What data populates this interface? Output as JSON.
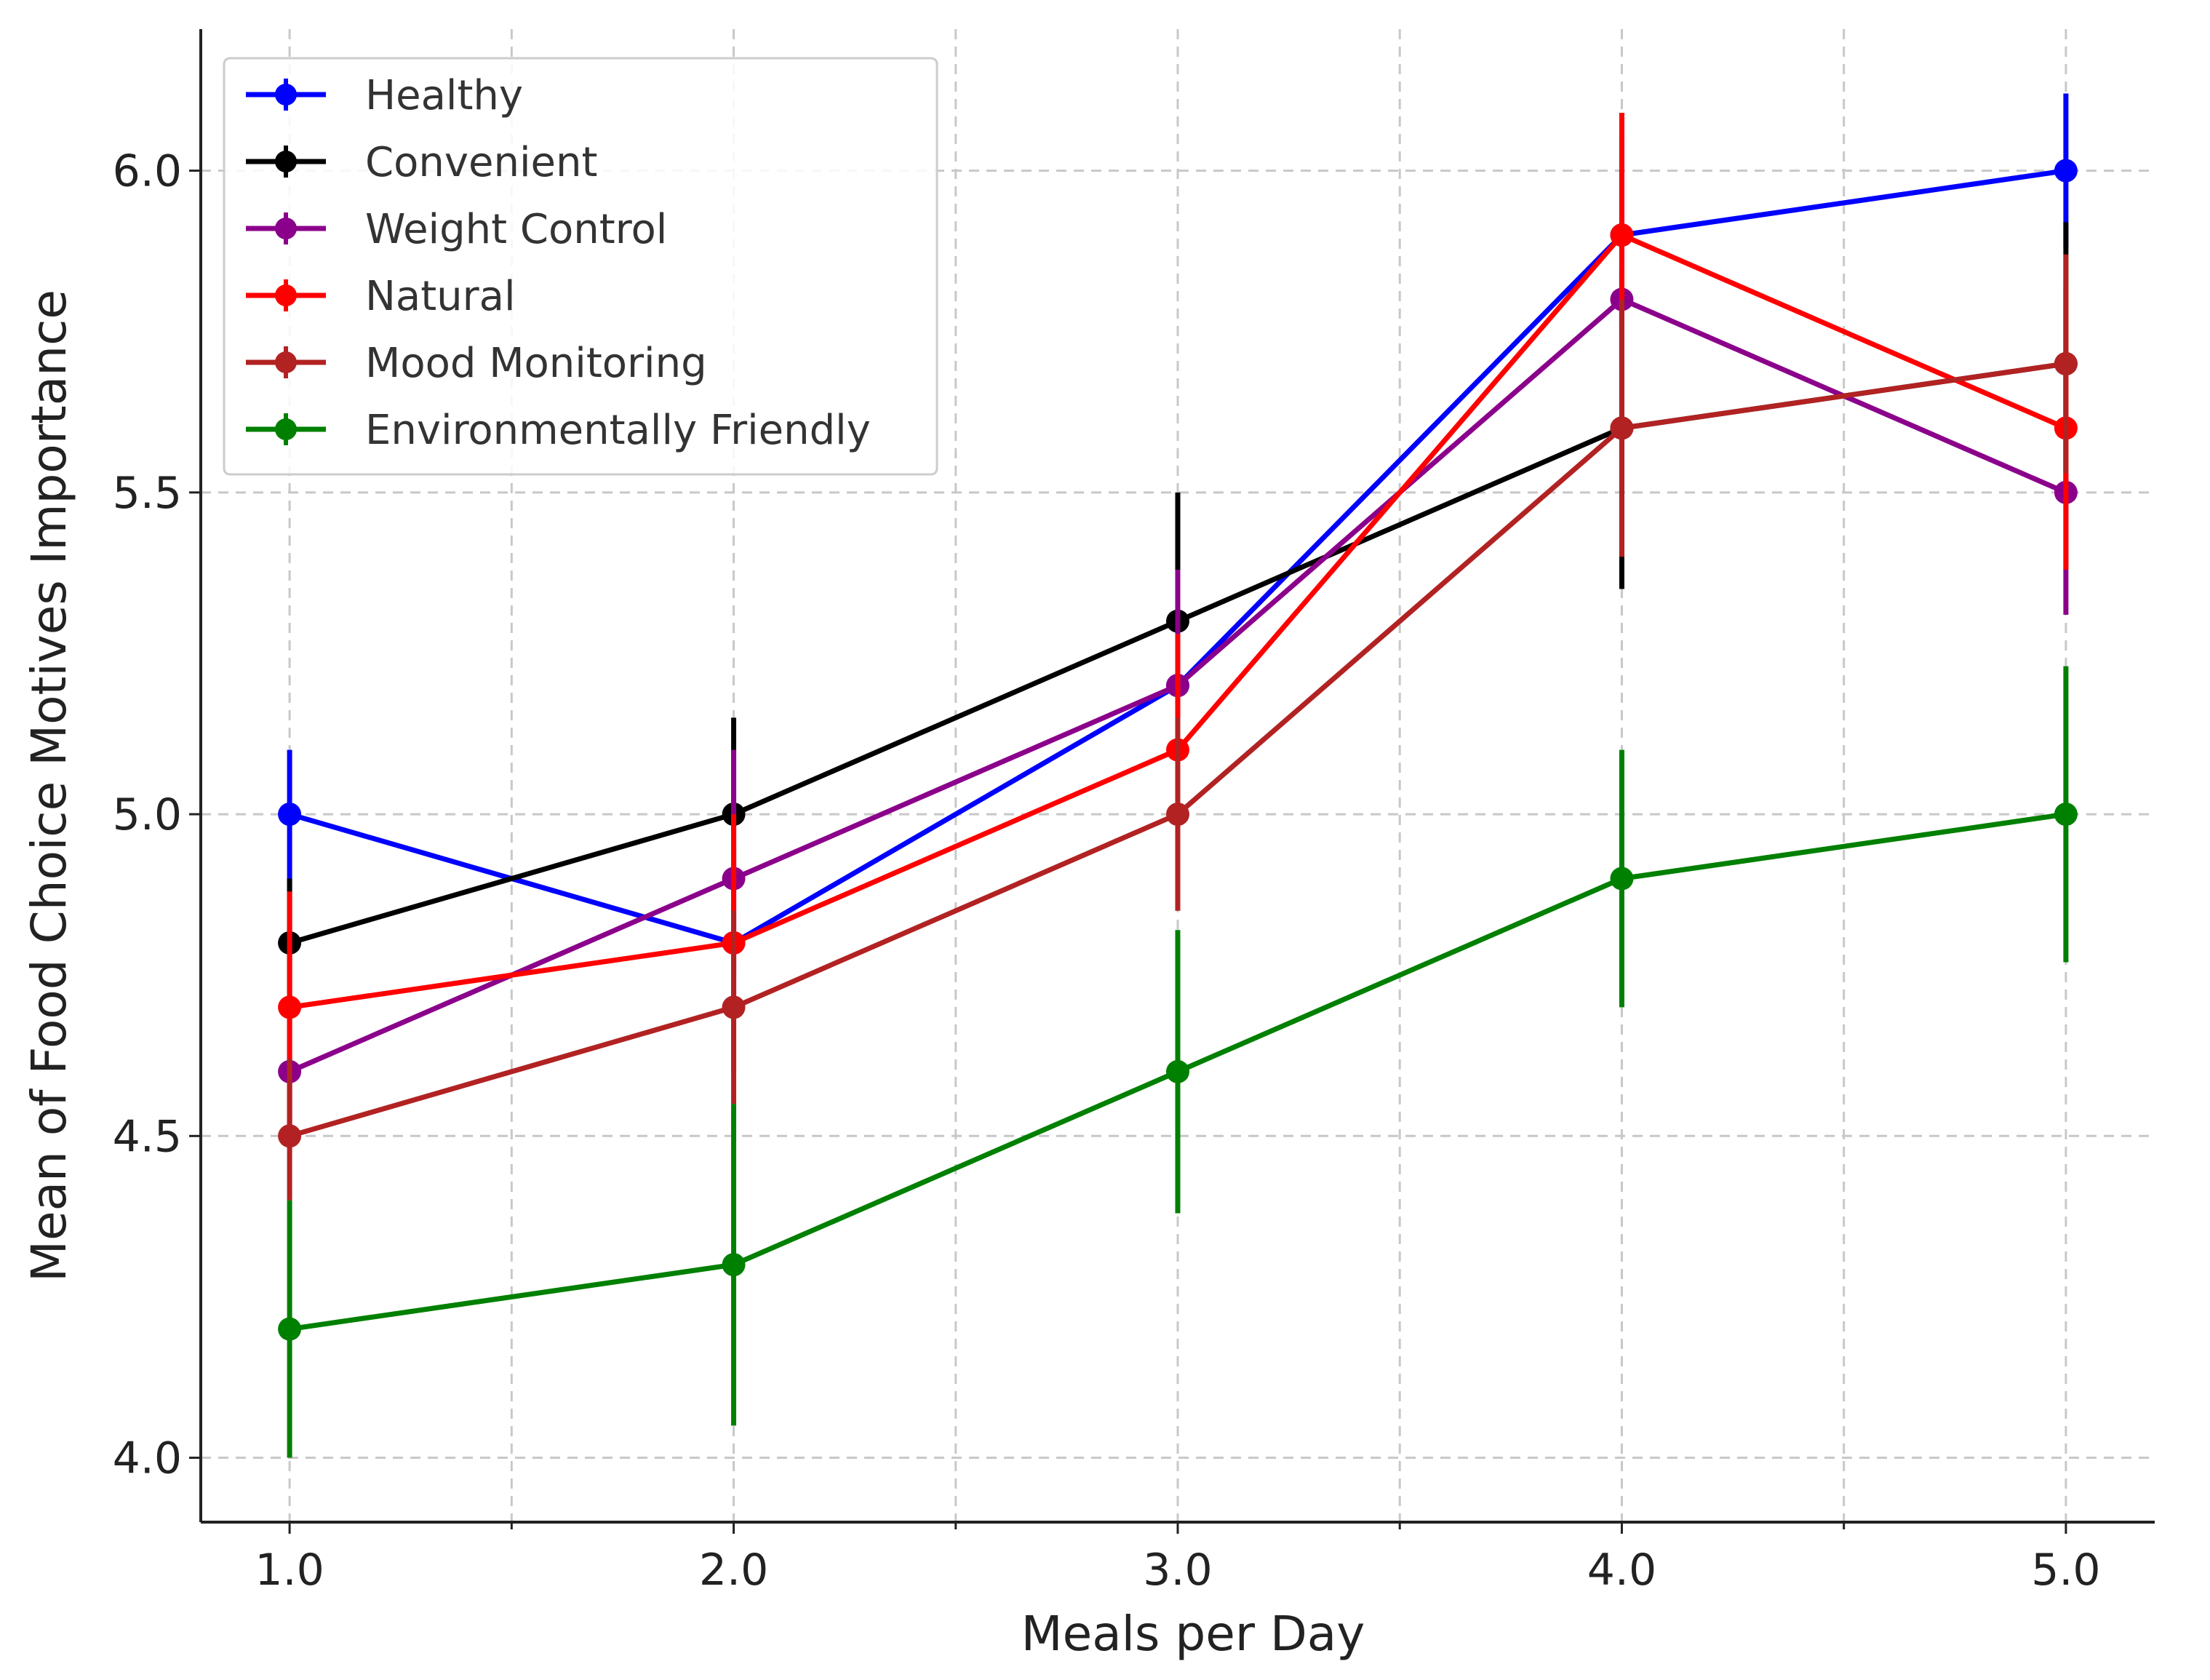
{
  "chart_data": {
    "type": "line",
    "title": "",
    "xlabel": "Meals per Day",
    "ylabel": "Mean of Food Choice Motives Importance",
    "x": [
      1.0,
      2.0,
      3.0,
      4.0,
      5.0
    ],
    "xlim": [
      0.8,
      5.2
    ],
    "ylim": [
      3.9,
      6.22
    ],
    "x_ticks": [
      1.0,
      2.0,
      3.0,
      4.0,
      5.0
    ],
    "x_tick_labels": [
      "1.0",
      "2.0",
      "3.0",
      "4.0",
      "5.0"
    ],
    "x_minor_grid": [
      1.5,
      2.5,
      3.5,
      4.5
    ],
    "y_ticks": [
      4.0,
      4.5,
      5.0,
      5.5,
      6.0
    ],
    "y_tick_labels": [
      "4.0",
      "4.5",
      "5.0",
      "5.5",
      "6.0"
    ],
    "grid": true,
    "legend_position": "top-left",
    "series": [
      {
        "name": "Healthy",
        "color": "#0000ff",
        "values": [
          5.0,
          4.8,
          5.2,
          5.9,
          6.0
        ],
        "err_low": [
          4.88,
          4.68,
          5.05,
          5.75,
          5.88
        ],
        "err_high": [
          5.1,
          4.95,
          5.35,
          6.05,
          6.12
        ]
      },
      {
        "name": "Convenient",
        "color": "#000000",
        "values": [
          4.8,
          5.0,
          5.3,
          5.6,
          5.7
        ],
        "err_low": [
          4.7,
          4.88,
          5.12,
          5.35,
          5.5
        ],
        "err_high": [
          4.9,
          5.15,
          5.5,
          5.85,
          5.92
        ]
      },
      {
        "name": "Weight Control",
        "color": "#8b008b",
        "values": [
          4.6,
          4.9,
          5.2,
          5.8,
          5.5
        ],
        "err_low": [
          4.48,
          4.75,
          5.02,
          5.6,
          5.31
        ],
        "err_high": [
          4.72,
          5.1,
          5.38,
          6.0,
          5.69
        ]
      },
      {
        "name": "Natural",
        "color": "#ff0000",
        "values": [
          4.7,
          4.8,
          5.1,
          5.9,
          5.6
        ],
        "err_low": [
          4.52,
          4.6,
          4.92,
          5.7,
          5.38
        ],
        "err_high": [
          4.88,
          5.0,
          5.28,
          6.09,
          5.82
        ]
      },
      {
        "name": "Mood Monitoring",
        "color": "#b22222",
        "values": [
          4.5,
          4.7,
          5.0,
          5.6,
          5.7
        ],
        "err_low": [
          4.4,
          4.55,
          4.85,
          5.4,
          5.53
        ],
        "err_high": [
          4.62,
          4.85,
          5.15,
          5.8,
          5.87
        ]
      },
      {
        "name": "Environmentally Friendly",
        "color": "#008000",
        "values": [
          4.2,
          4.3,
          4.6,
          4.9,
          5.0
        ],
        "err_low": [
          4.0,
          4.05,
          4.38,
          4.7,
          4.77
        ],
        "err_high": [
          4.4,
          4.55,
          4.82,
          5.1,
          5.23
        ]
      }
    ]
  }
}
